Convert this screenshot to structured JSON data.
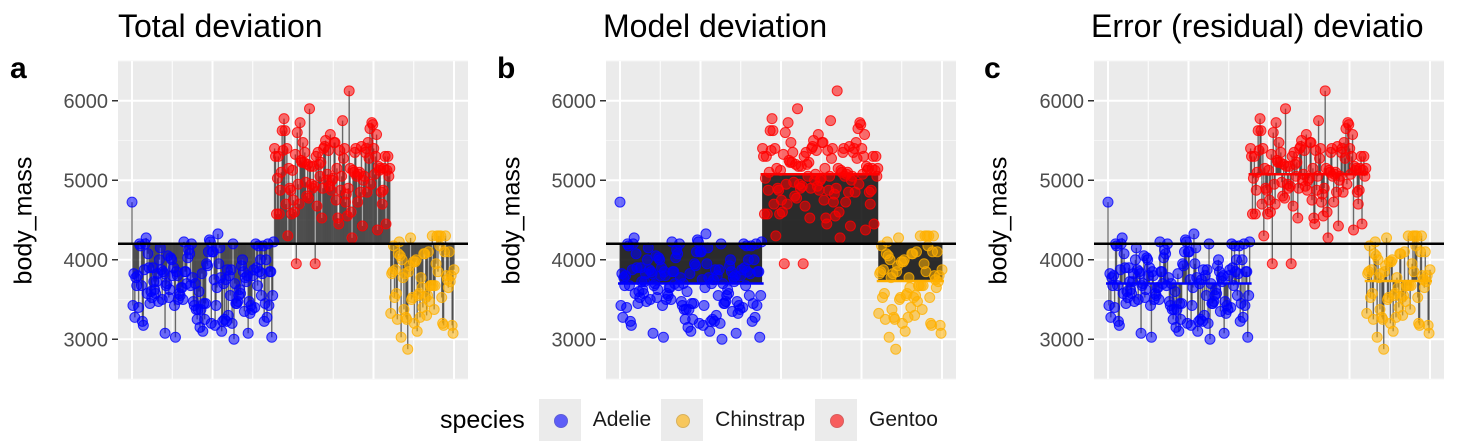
{
  "panels": [
    {
      "tag": "a",
      "title": "Total deviation",
      "ylabel": "body_mass"
    },
    {
      "tag": "b",
      "title": "Model deviation",
      "ylabel": "body_mass"
    },
    {
      "tag": "c",
      "title": "Error (residual) deviatio",
      "ylabel": "body_mass"
    }
  ],
  "legend": {
    "title": "species",
    "items": [
      {
        "label": "Adelie",
        "color": "#0000FF"
      },
      {
        "label": "Chinstrap",
        "color": "#FFB000"
      },
      {
        "label": "Gentoo",
        "color": "#FF0000"
      }
    ]
  },
  "chart_data": {
    "type": "scatter",
    "ylim": [
      2500,
      6500
    ],
    "yticks": [
      3000,
      4000,
      5000,
      6000
    ],
    "grid": true,
    "grand_mean": 4202,
    "legend_position": "bottom",
    "species": [
      {
        "name": "Adelie",
        "color": "#0000FF",
        "mean": 3701,
        "n": 151,
        "range": [
          2850,
          4775
        ]
      },
      {
        "name": "Gentoo",
        "color": "#FF0000",
        "mean": 5076,
        "n": 123,
        "range": [
          3950,
          6300
        ]
      },
      {
        "name": "Chinstrap",
        "color": "#FFB000",
        "mean": 3733,
        "n": 68,
        "range": [
          2700,
          4800
        ]
      }
    ],
    "panel_modes": [
      "total",
      "model",
      "error"
    ]
  }
}
